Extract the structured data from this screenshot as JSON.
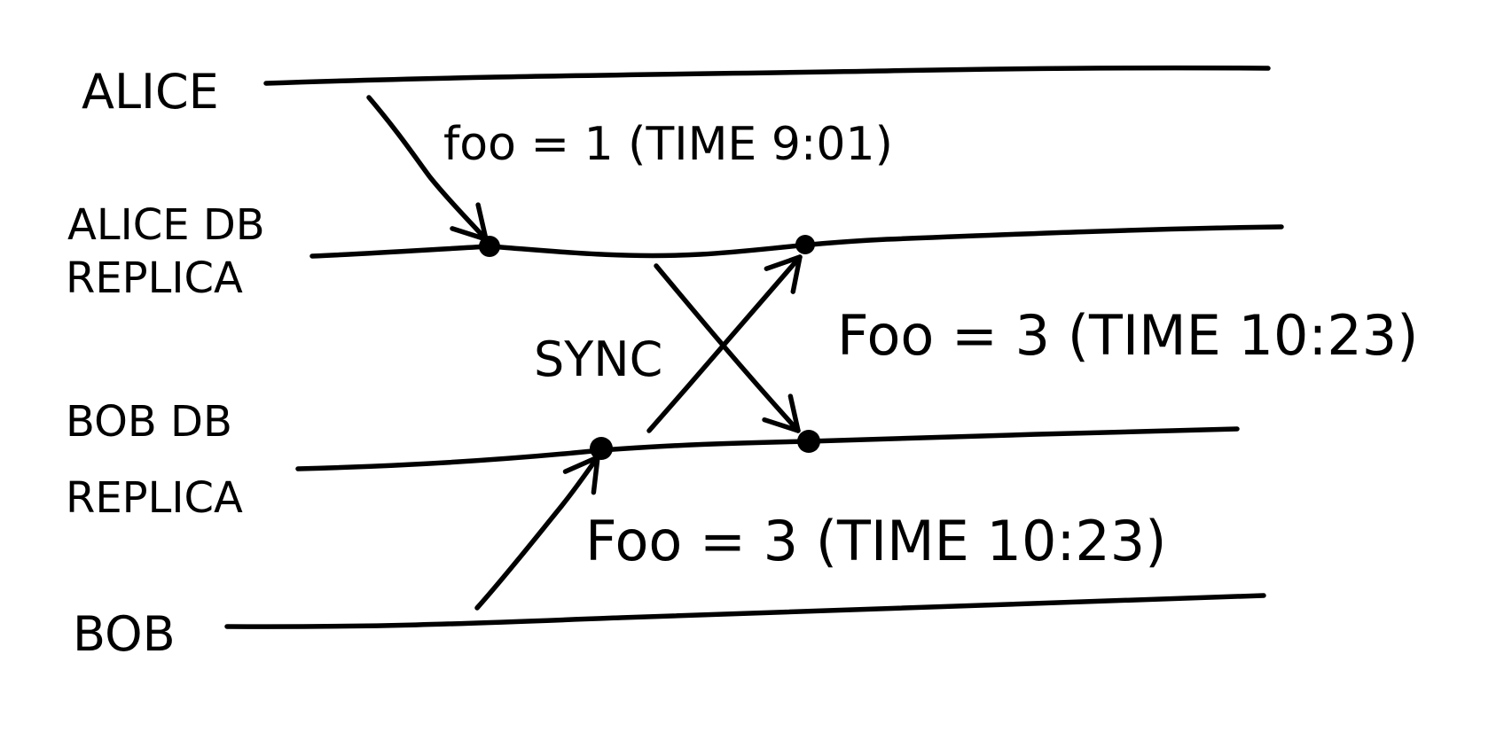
{
  "diagram": {
    "lanes": {
      "alice": "ALICE",
      "alice_db_line1": "ALICE DB",
      "alice_db_line2": "REPLICA",
      "bob_db_line1": "BOB DB",
      "bob_db_line2": "REPLICA",
      "bob": "BOB"
    },
    "messages": {
      "alice_write": "foo = 1 (TIME 9:01)",
      "sync": "SYNC",
      "sync_to_alice": "Foo = 3 (TIME 10:23)",
      "bob_write": "Foo = 3 (TIME 10:23)"
    },
    "colors": {
      "ink": "#000000",
      "paper": "#ffffff"
    }
  }
}
